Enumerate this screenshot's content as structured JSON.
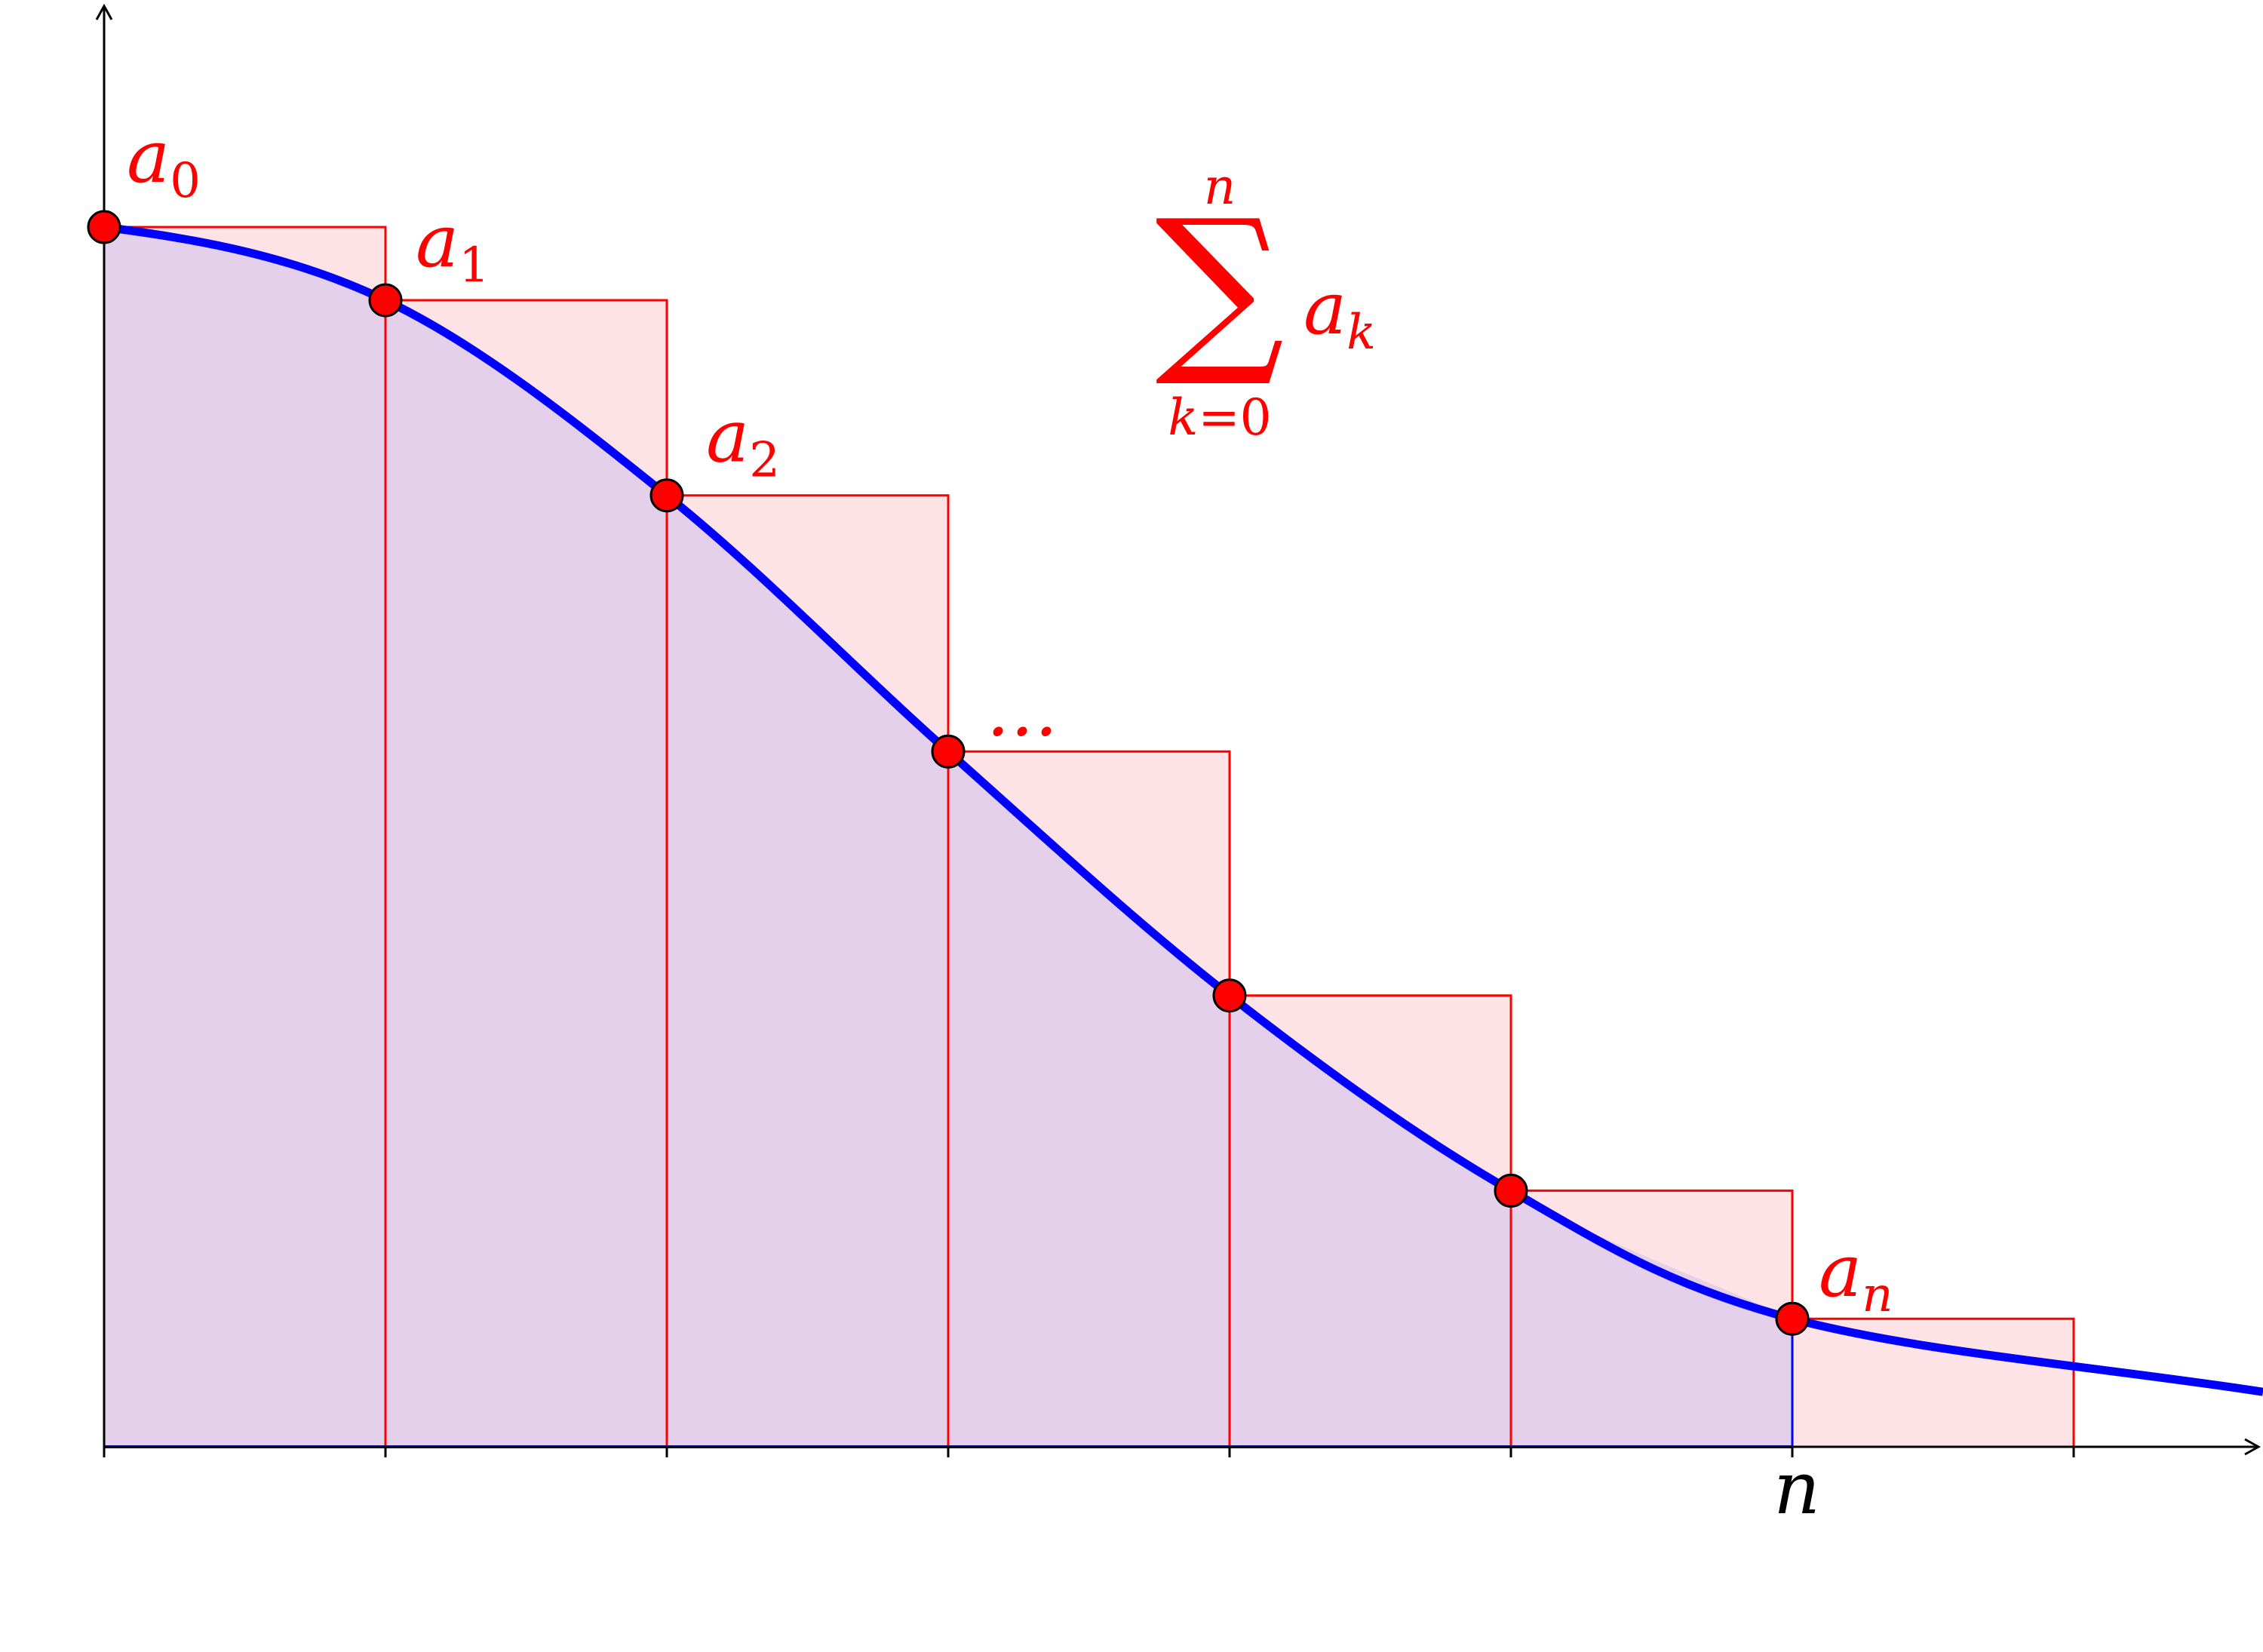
{
  "diagram": {
    "points": [
      {
        "label": "a",
        "sub": "0"
      },
      {
        "label": "a",
        "sub": "1"
      },
      {
        "label": "a",
        "sub": "2"
      },
      {
        "label": "…",
        "sub": ""
      },
      {
        "label": "",
        "sub": ""
      },
      {
        "label": "",
        "sub": ""
      },
      {
        "label": "a",
        "sub": "n"
      }
    ],
    "values": [
      1.0,
      0.94,
      0.78,
      0.57,
      0.37,
      0.21,
      0.105
    ],
    "x_axis_label": "n",
    "formula": {
      "symbol": "∑",
      "upper": "n",
      "lower_var": "k",
      "lower_eq": "=0",
      "term": "a",
      "term_sub": "k"
    },
    "colors": {
      "curve": "#0000ff",
      "step_edge": "#ff0000",
      "step_fill": "#fde3e6",
      "area_fill": "#e4d0ea",
      "point_fill": "#ff0000",
      "point_stroke": "#000000",
      "label": "#ff0000",
      "axis": "#000000"
    }
  }
}
